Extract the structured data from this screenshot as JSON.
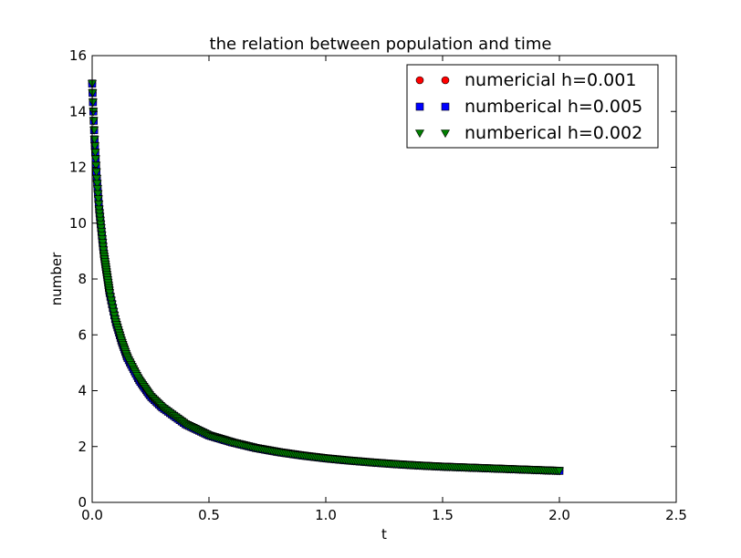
{
  "chart_data": {
    "type": "scatter",
    "title": "the relation between population and time",
    "xlabel": "t",
    "ylabel": "number",
    "xlim": [
      0.0,
      2.5
    ],
    "ylim": [
      0,
      16
    ],
    "xticks": [
      "0.0",
      "0.5",
      "1.0",
      "1.5",
      "2.0",
      "2.5"
    ],
    "yticks": [
      "0",
      "2",
      "4",
      "6",
      "8",
      "10",
      "12",
      "14",
      "16"
    ],
    "grid": false,
    "legend_position": "top-right",
    "x": [
      0.0,
      0.01,
      0.02,
      0.03,
      0.05,
      0.075,
      0.1,
      0.125,
      0.15,
      0.2,
      0.25,
      0.3,
      0.4,
      0.5,
      0.6,
      0.7,
      0.8,
      0.9,
      1.0,
      1.1,
      1.2,
      1.3,
      1.4,
      1.5,
      1.6,
      1.7,
      1.8,
      1.9,
      2.0
    ],
    "series": [
      {
        "name": "numericial h=0.001",
        "marker": "circle",
        "color": "#ff0000",
        "values": [
          15.0,
          13.0,
          11.6,
          10.5,
          8.9,
          7.5,
          6.5,
          5.8,
          5.2,
          4.4,
          3.8,
          3.4,
          2.8,
          2.4,
          2.15,
          1.95,
          1.8,
          1.68,
          1.58,
          1.5,
          1.43,
          1.37,
          1.32,
          1.28,
          1.25,
          1.22,
          1.19,
          1.16,
          1.13
        ]
      },
      {
        "name": "numberical h=0.005",
        "marker": "square",
        "color": "#0000ff",
        "values": [
          15.0,
          13.0,
          11.6,
          10.5,
          8.9,
          7.5,
          6.5,
          5.8,
          5.2,
          4.4,
          3.8,
          3.4,
          2.8,
          2.4,
          2.15,
          1.95,
          1.8,
          1.68,
          1.58,
          1.5,
          1.43,
          1.37,
          1.32,
          1.28,
          1.25,
          1.22,
          1.19,
          1.16,
          1.13
        ]
      },
      {
        "name": "numberical h=0.002",
        "marker": "triangle-down",
        "color": "#008000",
        "values": [
          15.0,
          13.0,
          11.6,
          10.5,
          8.9,
          7.5,
          6.5,
          5.8,
          5.2,
          4.4,
          3.8,
          3.4,
          2.8,
          2.4,
          2.15,
          1.95,
          1.8,
          1.68,
          1.58,
          1.5,
          1.43,
          1.37,
          1.32,
          1.28,
          1.25,
          1.22,
          1.19,
          1.16,
          1.13
        ]
      }
    ]
  }
}
